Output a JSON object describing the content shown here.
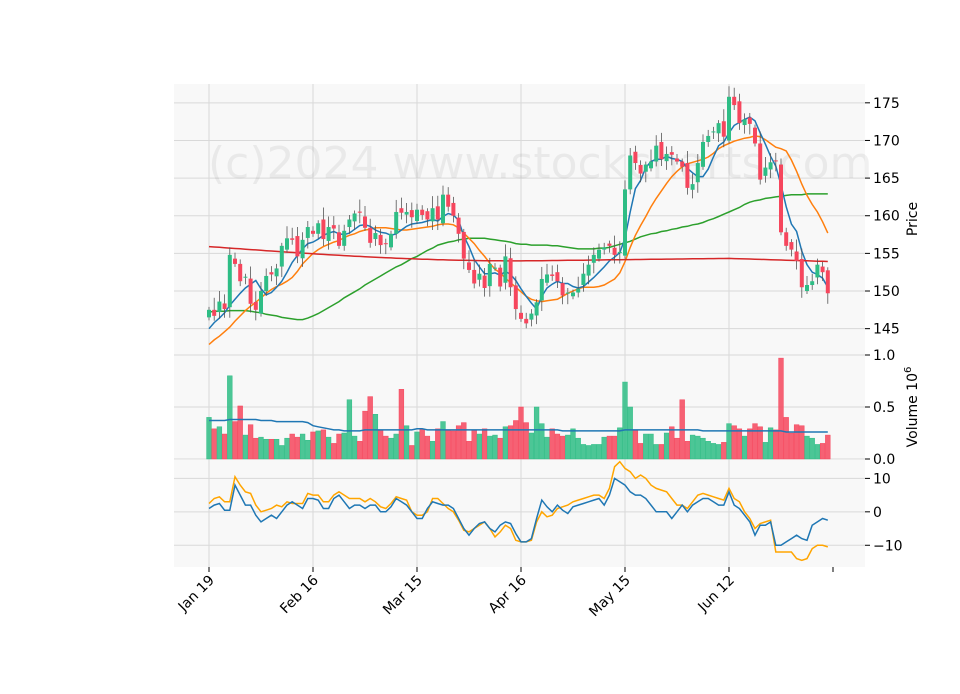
{
  "chart_data": {
    "type": "candlestick",
    "watermark": "(c)2024 www.stockcharts.com",
    "x_tick_labels": [
      {
        "label": "Jan 19",
        "index": 0
      },
      {
        "label": "Feb 16",
        "index": 20
      },
      {
        "label": "Mar 15",
        "index": 40
      },
      {
        "label": "Apr 16",
        "index": 60
      },
      {
        "label": "May 15",
        "index": 80
      },
      {
        "label": "Jun 12",
        "index": 100
      }
    ],
    "n_bars": 120,
    "colors": {
      "up": "#2ebd85",
      "down": "#f6465d",
      "ma5": "#1f77b4",
      "ma10": "#ff7f0e",
      "ma30": "#2ca02c",
      "ma60": "#d62728",
      "vol_ma": "#1f77b4",
      "macd": "#1f77b4",
      "signal": "#ffa500",
      "grid": "#d9d9d9",
      "panel_bg": "#f8f8f8"
    },
    "price_panel": {
      "ylabel": "Price",
      "yticks": [
        145,
        150,
        155,
        160,
        165,
        170,
        175
      ],
      "ylim": [
        141.5,
        177.5
      ],
      "close": [
        147.5,
        146.7,
        148.6,
        147.6,
        154.8,
        153.6,
        151.3,
        151.9,
        148.3,
        147.5,
        150.0,
        152.0,
        152.2,
        153.0,
        156.0,
        157.0,
        156.8,
        154.6,
        156.8,
        158.5,
        157.6,
        159.0,
        156.9,
        158.5,
        158.3,
        156.0,
        158.0,
        159.5,
        160.3,
        160.4,
        158.4,
        156.4,
        157.7,
        156.1,
        156.3,
        157.6,
        160.5,
        160.4,
        160.5,
        159.8,
        160.8,
        160.1,
        159.5,
        161.0,
        159.5,
        162.8,
        161.2,
        160.0,
        157.6,
        154.3,
        152.8,
        151.0,
        152.3,
        150.4,
        153.6,
        153.1,
        150.6,
        154.6,
        150.5,
        147.6,
        146.3,
        145.7,
        147.0,
        148.5,
        151.6,
        152.2,
        152.0,
        151.3,
        149.4,
        149.8,
        149.8,
        150.3,
        152.3,
        153.5,
        154.8,
        155.5,
        155.8,
        156.0,
        154.8,
        155.2,
        163.5,
        168.0,
        167.0,
        165.6,
        166.8,
        167.2,
        169.3,
        167.5,
        168.2,
        168.1,
        167.2,
        166.5,
        163.7,
        164.2,
        167.0,
        169.8,
        170.6,
        171.2,
        172.3,
        170.5,
        175.8,
        174.7,
        172.3,
        172.8,
        172.2,
        169.6,
        164.8,
        166.4,
        167.1,
        167.3,
        157.8,
        156.0,
        155.5,
        154.0,
        150.5,
        150.8,
        151.3,
        153.5,
        152.5,
        149.7
      ],
      "ma5": [
        145.0,
        145.8,
        146.4,
        147.1,
        148.1,
        148.9,
        149.7,
        150.4,
        150.9,
        151.4,
        150.3,
        149.5,
        149.8,
        150.5,
        151.3,
        152.5,
        153.8,
        154.7,
        155.6,
        156.3,
        156.5,
        156.9,
        157.4,
        157.7,
        157.9,
        157.6,
        157.5,
        157.7,
        158.2,
        158.7,
        158.8,
        158.6,
        158.1,
        157.8,
        157.7,
        157.4,
        157.6,
        158.1,
        158.6,
        158.9,
        159.0,
        159.1,
        159.3,
        159.5,
        159.3,
        159.9,
        160.3,
        160.1,
        159.4,
        157.3,
        155.9,
        154.2,
        153.2,
        152.3,
        152.3,
        152.4,
        152.1,
        152.6,
        152.2,
        151.4,
        150.3,
        149.3,
        148.4,
        147.6,
        149.3,
        150.4,
        150.9,
        151.3,
        151.0,
        151.0,
        150.6,
        150.4,
        150.6,
        151.2,
        151.8,
        152.5,
        153.2,
        154.0,
        154.5,
        155.1,
        157.0,
        160.5,
        163.6,
        164.7,
        166.4,
        167.2,
        167.5,
        167.5,
        167.9,
        167.6,
        167.5,
        167.2,
        166.3,
        165.7,
        165.2,
        165.2,
        166.2,
        167.8,
        169.3,
        169.8,
        171.0,
        172.0,
        172.4,
        172.8,
        173.1,
        172.6,
        171.0,
        169.5,
        167.9,
        166.6,
        164.1,
        161.2,
        158.9,
        157.9,
        155.3,
        153.5,
        152.5,
        152.2,
        151.7,
        150.5
      ],
      "ma10": [
        142.9,
        143.5,
        144.0,
        144.6,
        145.2,
        146.0,
        146.7,
        147.4,
        148.0,
        148.5,
        149.1,
        149.7,
        150.2,
        150.6,
        150.9,
        151.3,
        151.8,
        152.6,
        153.6,
        154.3,
        155.0,
        155.5,
        155.9,
        156.2,
        156.5,
        156.7,
        157.1,
        157.4,
        157.6,
        157.9,
        158.1,
        158.2,
        158.4,
        158.4,
        158.4,
        158.3,
        158.2,
        158.1,
        158.1,
        158.2,
        158.3,
        158.4,
        158.5,
        158.6,
        158.8,
        158.9,
        158.9,
        158.8,
        158.4,
        157.7,
        157.0,
        156.3,
        155.4,
        154.6,
        153.7,
        152.9,
        152.4,
        151.7,
        151.1,
        150.5,
        149.9,
        149.3,
        148.9,
        148.7,
        148.6,
        148.7,
        148.8,
        148.9,
        149.3,
        149.7,
        150.0,
        150.3,
        150.5,
        150.5,
        150.5,
        150.6,
        150.8,
        151.2,
        151.6,
        152.4,
        153.9,
        155.8,
        157.4,
        158.7,
        159.9,
        161.2,
        162.3,
        163.3,
        164.3,
        165.2,
        165.9,
        166.5,
        166.9,
        167.1,
        167.3,
        167.5,
        167.8,
        168.3,
        168.9,
        169.3,
        169.6,
        169.9,
        170.1,
        170.3,
        170.4,
        170.6,
        170.5,
        170.1,
        169.6,
        169.1,
        168.9,
        168.6,
        167.4,
        165.9,
        164.2,
        162.7,
        161.5,
        160.5,
        159.2,
        157.7
      ],
      "ma30": [
        147.2,
        147.3,
        147.3,
        147.3,
        147.4,
        147.4,
        147.4,
        147.4,
        147.3,
        147.2,
        147.1,
        146.9,
        146.8,
        146.7,
        146.5,
        146.4,
        146.3,
        146.2,
        146.2,
        146.4,
        146.7,
        147.0,
        147.4,
        147.8,
        148.2,
        148.6,
        149.1,
        149.5,
        149.9,
        150.3,
        150.8,
        151.2,
        151.6,
        152.0,
        152.4,
        152.8,
        153.2,
        153.5,
        153.9,
        154.3,
        154.6,
        155.0,
        155.4,
        155.7,
        156.1,
        156.3,
        156.5,
        156.6,
        156.8,
        156.9,
        157.0,
        157.0,
        157.0,
        157.0,
        156.9,
        156.8,
        156.7,
        156.6,
        156.5,
        156.3,
        156.2,
        156.2,
        156.1,
        156.1,
        156.1,
        156.1,
        156.0,
        156.0,
        155.9,
        155.8,
        155.7,
        155.6,
        155.6,
        155.6,
        155.6,
        155.7,
        155.7,
        155.8,
        156.0,
        156.2,
        156.4,
        156.6,
        156.9,
        157.2,
        157.4,
        157.6,
        157.7,
        157.9,
        158.0,
        158.2,
        158.3,
        158.5,
        158.6,
        158.8,
        158.9,
        159.1,
        159.4,
        159.6,
        159.9,
        160.2,
        160.5,
        160.8,
        161.1,
        161.5,
        161.8,
        162.0,
        162.1,
        162.3,
        162.4,
        162.5,
        162.6,
        162.7,
        162.8,
        162.8,
        162.8,
        162.9,
        162.9,
        162.9,
        162.9,
        162.9
      ]
    },
    "volume_panel": {
      "ylabel": "Volume",
      "multiplier": "10",
      "multiplier_exp": "6",
      "yticks": [
        0.0,
        0.5,
        1.0
      ],
      "ylim": [
        0,
        1.0
      ],
      "volume": [
        0.4,
        0.29,
        0.31,
        0.24,
        0.8,
        0.36,
        0.51,
        0.23,
        0.33,
        0.2,
        0.21,
        0.19,
        0.19,
        0.19,
        0.13,
        0.2,
        0.24,
        0.21,
        0.24,
        0.18,
        0.26,
        0.27,
        0.28,
        0.21,
        0.15,
        0.24,
        0.25,
        0.57,
        0.22,
        0.17,
        0.46,
        0.6,
        0.43,
        0.28,
        0.22,
        0.2,
        0.24,
        0.67,
        0.32,
        0.13,
        0.26,
        0.29,
        0.22,
        0.17,
        0.29,
        0.36,
        0.28,
        0.27,
        0.32,
        0.35,
        0.17,
        0.28,
        0.24,
        0.29,
        0.22,
        0.23,
        0.2,
        0.31,
        0.32,
        0.37,
        0.5,
        0.35,
        0.25,
        0.5,
        0.34,
        0.21,
        0.29,
        0.24,
        0.22,
        0.23,
        0.29,
        0.2,
        0.14,
        0.13,
        0.14,
        0.14,
        0.21,
        0.22,
        0.22,
        0.3,
        0.74,
        0.5,
        0.28,
        0.15,
        0.24,
        0.24,
        0.14,
        0.14,
        0.25,
        0.31,
        0.2,
        0.57,
        0.17,
        0.23,
        0.22,
        0.2,
        0.17,
        0.15,
        0.14,
        0.16,
        0.34,
        0.32,
        0.29,
        0.22,
        0.29,
        0.34,
        0.31,
        0.16,
        0.3,
        0.28,
        0.97,
        0.4,
        0.25,
        0.33,
        0.32,
        0.22,
        0.2,
        0.14,
        0.15,
        0.23
      ],
      "vol_ma": [
        0.37,
        0.37,
        0.37,
        0.37,
        0.38,
        0.38,
        0.38,
        0.38,
        0.38,
        0.38,
        0.37,
        0.37,
        0.37,
        0.36,
        0.36,
        0.36,
        0.36,
        0.36,
        0.36,
        0.35,
        0.32,
        0.31,
        0.3,
        0.29,
        0.28,
        0.28,
        0.27,
        0.27,
        0.27,
        0.27,
        0.28,
        0.28,
        0.28,
        0.28,
        0.28,
        0.28,
        0.28,
        0.28,
        0.28,
        0.28,
        0.29,
        0.29,
        0.28,
        0.28,
        0.28,
        0.28,
        0.28,
        0.28,
        0.28,
        0.28,
        0.28,
        0.28,
        0.28,
        0.28,
        0.28,
        0.28,
        0.28,
        0.28,
        0.28,
        0.28,
        0.28,
        0.28,
        0.28,
        0.28,
        0.28,
        0.28,
        0.28,
        0.28,
        0.27,
        0.27,
        0.27,
        0.27,
        0.27,
        0.27,
        0.27,
        0.27,
        0.27,
        0.27,
        0.27,
        0.27,
        0.28,
        0.28,
        0.28,
        0.28,
        0.28,
        0.28,
        0.28,
        0.28,
        0.28,
        0.28,
        0.28,
        0.28,
        0.28,
        0.28,
        0.28,
        0.27,
        0.27,
        0.27,
        0.27,
        0.27,
        0.27,
        0.27,
        0.27,
        0.27,
        0.27,
        0.27,
        0.27,
        0.27,
        0.27,
        0.27,
        0.27,
        0.26,
        0.26,
        0.26,
        0.26,
        0.26,
        0.26,
        0.26,
        0.26,
        0.26
      ]
    },
    "macd_panel": {
      "yticks": [
        -10,
        0,
        10
      ],
      "ylim": [
        -16.5,
        15.5
      ],
      "macd": [
        1.0,
        2.0,
        2.5,
        0.5,
        0.5,
        8.0,
        5.0,
        2.0,
        2.0,
        -1.0,
        -3.0,
        -2.0,
        -1.0,
        -2.0,
        0.0,
        2.0,
        3.0,
        2.0,
        1.0,
        4.0,
        4.0,
        3.5,
        1.0,
        1.0,
        4.0,
        5.0,
        3.0,
        1.0,
        2.0,
        2.0,
        1.0,
        2.0,
        2.0,
        0.0,
        0.0,
        1.5,
        4.0,
        3.0,
        2.0,
        0.0,
        -2.0,
        -2.0,
        1.0,
        3.0,
        2.5,
        2.0,
        2.0,
        1.0,
        -2.0,
        -5.0,
        -7.0,
        -5.0,
        -3.5,
        -3.0,
        -5.0,
        -6.0,
        -4.0,
        -3.0,
        -3.5,
        -6.5,
        -9.0,
        -9.0,
        -8.0,
        -2.0,
        3.5,
        1.5,
        0.0,
        2.0,
        0.5,
        -0.5,
        1.5,
        2.0,
        2.5,
        3.0,
        3.5,
        4.0,
        2.0,
        5.0,
        10.0,
        9.0,
        8.0,
        6.0,
        5.0,
        5.0,
        4.0,
        2.0,
        0.0,
        0.0,
        0.0,
        -2.0,
        0.0,
        2.0,
        0.0,
        2.0,
        3.0,
        4.0,
        4.0,
        3.0,
        2.0,
        2.0,
        6.0,
        2.0,
        1.0,
        -1.0,
        -3.0,
        -7.0,
        -4.0,
        -4.0,
        -3.0,
        -10.0,
        -10.0,
        -9.0,
        -8.0,
        -7.0,
        -8.0,
        -8.5,
        -4.0,
        -3.0,
        -2.0,
        -2.5
      ],
      "signal": [
        2.5,
        4.0,
        4.5,
        3.0,
        3.0,
        10.5,
        8.0,
        6.0,
        5.5,
        2.0,
        0.0,
        0.5,
        1.0,
        2.0,
        1.5,
        3.0,
        2.5,
        2.5,
        2.5,
        5.5,
        5.0,
        5.0,
        3.0,
        3.0,
        5.0,
        6.0,
        5.0,
        4.0,
        4.0,
        4.0,
        3.0,
        4.0,
        3.0,
        1.5,
        1.0,
        2.5,
        4.5,
        4.0,
        3.5,
        0.0,
        -1.0,
        -1.0,
        0.0,
        4.0,
        4.0,
        2.5,
        1.0,
        0.0,
        -2.5,
        -5.5,
        -6.0,
        -5.0,
        -4.0,
        -3.0,
        -5.0,
        -7.5,
        -6.0,
        -4.0,
        -5.0,
        -8.5,
        -9.0,
        -9.0,
        -8.5,
        -3.0,
        0.0,
        -1.5,
        -1.0,
        1.0,
        1.5,
        2.0,
        3.0,
        3.5,
        4.0,
        4.5,
        5.0,
        5.0,
        4.0,
        7.0,
        13.5,
        15.0,
        13.0,
        12.0,
        10.0,
        11.0,
        10.0,
        8.0,
        7.0,
        6.5,
        6.0,
        4.0,
        2.0,
        2.0,
        1.0,
        3.0,
        5.0,
        5.5,
        5.0,
        4.5,
        4.0,
        3.5,
        7.0,
        4.0,
        3.0,
        0.0,
        -2.0,
        -5.0,
        -3.5,
        -3.0,
        -2.5,
        -12.0,
        -12.0,
        -12.0,
        -12.0,
        -14.0,
        -14.5,
        -14.0,
        -11.0,
        -10.0,
        -10.0,
        -10.5
      ]
    }
  }
}
